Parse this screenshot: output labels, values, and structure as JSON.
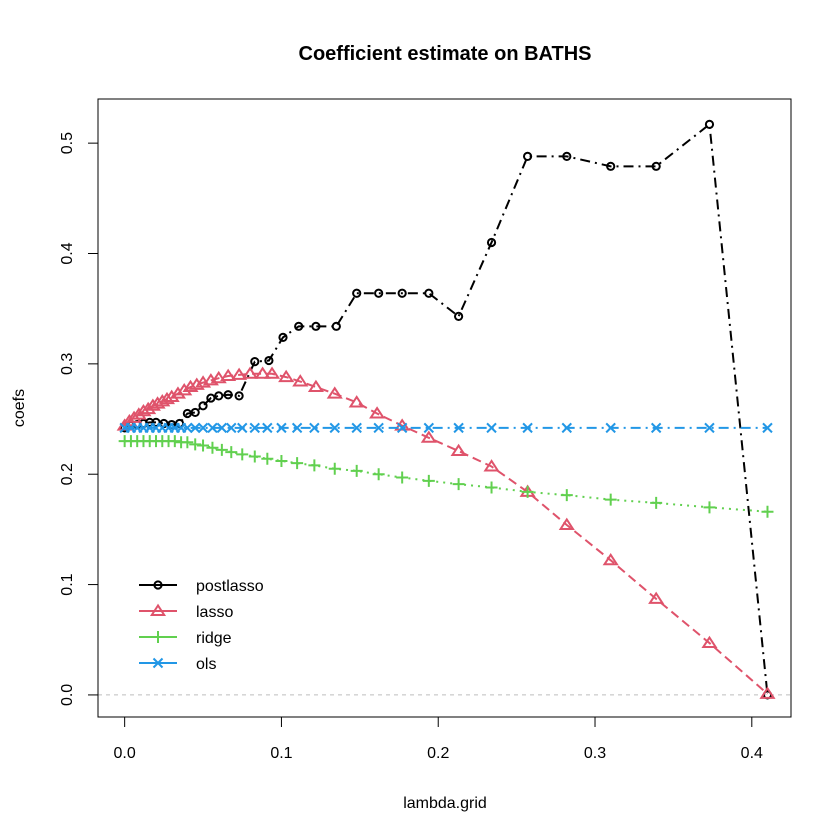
{
  "chart_data": {
    "type": "line",
    "title": "Coefficient estimate on BATHS",
    "xlabel": "lambda.grid",
    "ylabel": "coefs",
    "xlim": [
      -0.017,
      0.425
    ],
    "ylim": [
      -0.02,
      0.54
    ],
    "xticks": [
      0.0,
      0.1,
      0.2,
      0.3,
      0.4
    ],
    "yticks": [
      0.0,
      0.1,
      0.2,
      0.3,
      0.4,
      0.5
    ],
    "xtick_labels": [
      "0.0",
      "0.1",
      "0.2",
      "0.3",
      "0.4"
    ],
    "ytick_labels": [
      "0.0",
      "0.1",
      "0.2",
      "0.3",
      "0.4",
      "0.5"
    ],
    "hline": 0,
    "legend_position": "bottom-left",
    "series": [
      {
        "name": "postlasso",
        "color": "#000000",
        "marker": "circle",
        "line": "dash-dot",
        "x": [
          0.0,
          0.004,
          0.008,
          0.012,
          0.016,
          0.02,
          0.025,
          0.03,
          0.035,
          0.04,
          0.045,
          0.05,
          0.055,
          0.06,
          0.066,
          0.073,
          0.083,
          0.092,
          0.101,
          0.111,
          0.122,
          0.135,
          0.148,
          0.162,
          0.177,
          0.194,
          0.213,
          0.234,
          0.257,
          0.282,
          0.31,
          0.339,
          0.373,
          0.41
        ],
        "y": [
          0.242,
          0.244,
          0.245,
          0.246,
          0.247,
          0.247,
          0.246,
          0.245,
          0.246,
          0.255,
          0.256,
          0.262,
          0.269,
          0.271,
          0.272,
          0.271,
          0.302,
          0.303,
          0.324,
          0.334,
          0.334,
          0.334,
          0.364,
          0.364,
          0.364,
          0.364,
          0.343,
          0.41,
          0.488,
          0.488,
          0.479,
          0.479,
          0.517,
          0.0
        ]
      },
      {
        "name": "lasso",
        "color": "#DF536B",
        "marker": "triangle",
        "line": "dashed",
        "x": [
          0.0,
          0.003,
          0.006,
          0.009,
          0.012,
          0.015,
          0.018,
          0.021,
          0.024,
          0.027,
          0.03,
          0.034,
          0.038,
          0.042,
          0.046,
          0.05,
          0.055,
          0.06,
          0.066,
          0.073,
          0.08,
          0.088,
          0.094,
          0.103,
          0.112,
          0.122,
          0.134,
          0.148,
          0.161,
          0.177,
          0.194,
          0.213,
          0.234,
          0.257,
          0.282,
          0.31,
          0.339,
          0.373,
          0.41
        ],
        "y": [
          0.244,
          0.248,
          0.251,
          0.254,
          0.257,
          0.259,
          0.262,
          0.264,
          0.266,
          0.268,
          0.27,
          0.273,
          0.276,
          0.279,
          0.281,
          0.283,
          0.285,
          0.287,
          0.289,
          0.29,
          0.291,
          0.291,
          0.291,
          0.288,
          0.284,
          0.279,
          0.273,
          0.265,
          0.255,
          0.244,
          0.233,
          0.221,
          0.207,
          0.184,
          0.154,
          0.122,
          0.087,
          0.047,
          0.001
        ]
      },
      {
        "name": "ridge",
        "color": "#61D04F",
        "marker": "plus",
        "line": "dotted",
        "x": [
          0.0,
          0.004,
          0.008,
          0.012,
          0.016,
          0.02,
          0.024,
          0.028,
          0.032,
          0.036,
          0.04,
          0.045,
          0.05,
          0.056,
          0.062,
          0.068,
          0.075,
          0.083,
          0.091,
          0.1,
          0.11,
          0.121,
          0.134,
          0.148,
          0.162,
          0.177,
          0.194,
          0.213,
          0.234,
          0.257,
          0.282,
          0.31,
          0.339,
          0.373,
          0.41
        ],
        "y": [
          0.23,
          0.23,
          0.23,
          0.23,
          0.23,
          0.23,
          0.23,
          0.23,
          0.23,
          0.229,
          0.229,
          0.227,
          0.226,
          0.224,
          0.222,
          0.22,
          0.218,
          0.216,
          0.214,
          0.212,
          0.21,
          0.208,
          0.205,
          0.203,
          0.2,
          0.197,
          0.194,
          0.191,
          0.188,
          0.184,
          0.181,
          0.177,
          0.174,
          0.17,
          0.166
        ]
      },
      {
        "name": "ols",
        "color": "#2297E6",
        "marker": "x",
        "line": "dash-dot",
        "x": [
          0.0,
          0.004,
          0.008,
          0.012,
          0.016,
          0.02,
          0.024,
          0.028,
          0.032,
          0.036,
          0.04,
          0.045,
          0.05,
          0.056,
          0.062,
          0.068,
          0.075,
          0.083,
          0.091,
          0.1,
          0.11,
          0.121,
          0.134,
          0.148,
          0.162,
          0.177,
          0.194,
          0.213,
          0.234,
          0.257,
          0.282,
          0.31,
          0.339,
          0.373,
          0.41
        ],
        "y": [
          0.242,
          0.242,
          0.242,
          0.242,
          0.242,
          0.242,
          0.242,
          0.242,
          0.242,
          0.242,
          0.242,
          0.242,
          0.242,
          0.242,
          0.242,
          0.242,
          0.242,
          0.242,
          0.242,
          0.242,
          0.242,
          0.242,
          0.242,
          0.242,
          0.242,
          0.242,
          0.242,
          0.242,
          0.242,
          0.242,
          0.242,
          0.242,
          0.242,
          0.242,
          0.242
        ]
      }
    ]
  }
}
